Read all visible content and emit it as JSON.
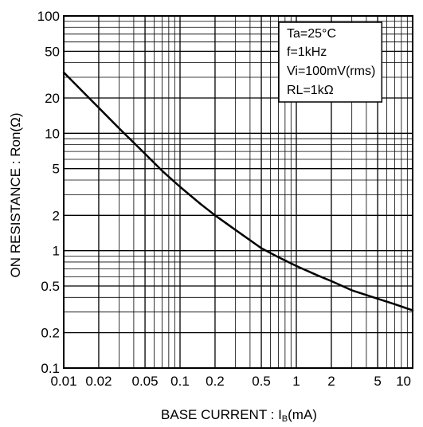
{
  "chart_data": {
    "type": "line",
    "title": "",
    "xlabel": "BASE  CURRENT : I",
    "xlabel_sub": "B",
    "xlabel_unit": "(mA)",
    "ylabel": "ON  RESISTANCE : Ron(Ω)",
    "x_scale": "log",
    "y_scale": "log",
    "xlim": [
      0.01,
      10
    ],
    "ylim": [
      0.1,
      100
    ],
    "grid": true,
    "x_ticks": [
      {
        "value": 0.01,
        "label": "0.01"
      },
      {
        "value": 0.02,
        "label": "0.02"
      },
      {
        "value": 0.05,
        "label": "0.05"
      },
      {
        "value": 0.1,
        "label": "0.1"
      },
      {
        "value": 0.2,
        "label": "0.2"
      },
      {
        "value": 0.5,
        "label": "0.5"
      },
      {
        "value": 1,
        "label": "1"
      },
      {
        "value": 2,
        "label": "2"
      },
      {
        "value": 5,
        "label": "5"
      },
      {
        "value": 10,
        "label": "10"
      }
    ],
    "y_ticks": [
      {
        "value": 0.1,
        "label": "0.1"
      },
      {
        "value": 0.2,
        "label": "0.2"
      },
      {
        "value": 0.5,
        "label": "0.5"
      },
      {
        "value": 1,
        "label": "1"
      },
      {
        "value": 2,
        "label": "2"
      },
      {
        "value": 5,
        "label": "5"
      },
      {
        "value": 10,
        "label": "10"
      },
      {
        "value": 20,
        "label": "20"
      },
      {
        "value": 50,
        "label": "50"
      },
      {
        "value": 100,
        "label": "100"
      }
    ],
    "legend_location": "top-right",
    "conditions": [
      "Ta=25°C",
      "f=1kHz",
      "Vi=100mV(rms)",
      "RL=1kΩ"
    ],
    "series": [
      {
        "x": [
          0.01,
          0.015,
          0.02,
          0.03,
          0.05,
          0.07,
          0.1,
          0.15,
          0.2,
          0.3,
          0.5,
          0.7,
          1,
          1.5,
          2,
          3,
          5,
          7,
          10
        ],
        "y": [
          33,
          22,
          16.5,
          11,
          6.7,
          4.8,
          3.5,
          2.5,
          2.0,
          1.5,
          1.05,
          0.88,
          0.74,
          0.62,
          0.55,
          0.46,
          0.39,
          0.35,
          0.31
        ]
      }
    ]
  }
}
